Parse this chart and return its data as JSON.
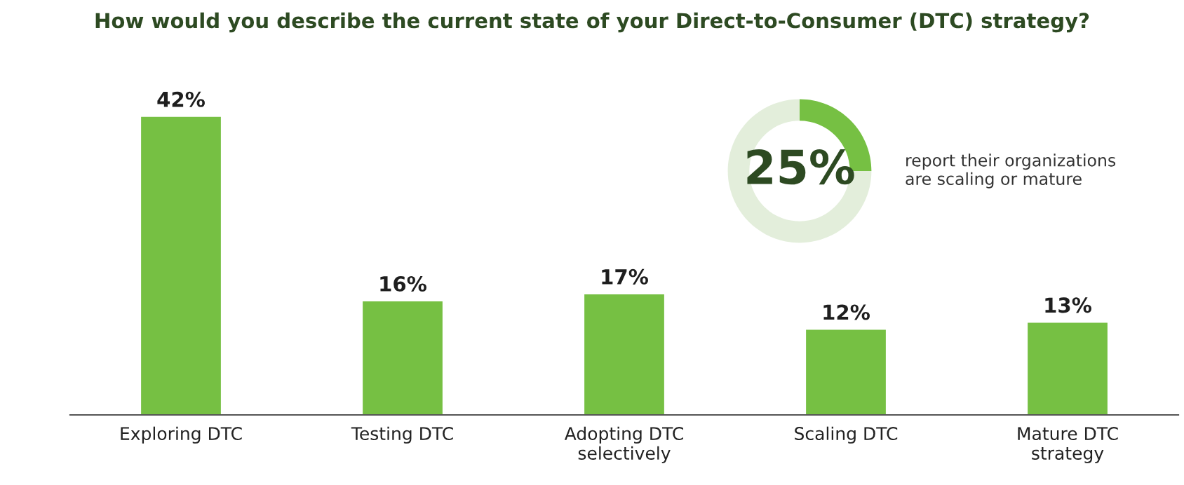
{
  "chart_data": [
    {
      "type": "bar",
      "title": "How would you describe the current state of your Direct-to-Consumer (DTC) strategy?",
      "categories": [
        "Exploring DTC",
        "Testing DTC",
        "Adopting DTC\nselectively",
        "Scaling DTC",
        "Mature DTC\nstrategy"
      ],
      "values": [
        42,
        16,
        17,
        12,
        13
      ],
      "color": "#76c043",
      "value_labels": [
        "42%",
        "16%",
        "17%",
        "12%",
        "13%"
      ]
    },
    {
      "type": "donut",
      "categories": [
        null,
        null
      ],
      "values": [
        25,
        75
      ],
      "colors": [
        "#76c043",
        "#e3eedb"
      ],
      "value_labels": [
        "25%",
        null
      ],
      "annotations": [
        "report their organizations\nare scaling or mature"
      ]
    }
  ]
}
